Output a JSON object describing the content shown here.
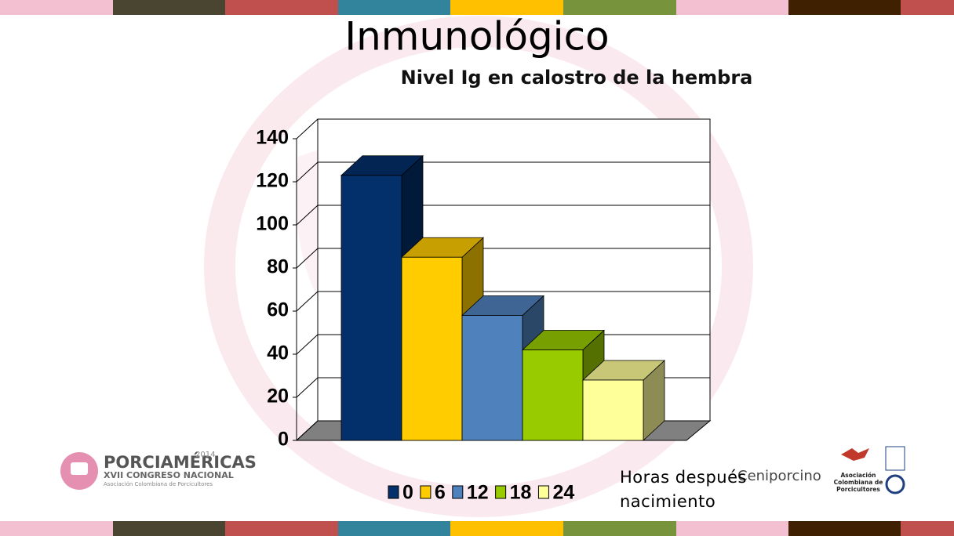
{
  "chart_data": {
    "type": "bar3d",
    "title": "Inmunológico",
    "subtitle": "Nivel Ig en calostro de la hembra",
    "annotation": "Horas después nacimiento",
    "series": [
      {
        "name": "0",
        "color": "#03306a",
        "values": [
          123
        ]
      },
      {
        "name": "6",
        "color": "#ffcc00",
        "values": [
          85
        ]
      },
      {
        "name": "12",
        "color": "#4f81bd",
        "values": [
          58
        ]
      },
      {
        "name": "18",
        "color": "#99cc00",
        "values": [
          42
        ]
      },
      {
        "name": "24",
        "color": "#ffff99",
        "values": [
          28
        ]
      }
    ],
    "ylim": [
      0,
      140
    ],
    "yticks": [
      0,
      20,
      40,
      60,
      80,
      100,
      120,
      140
    ],
    "grid": true,
    "legend": "bottom"
  },
  "logos": {
    "left_name": "PORCIAMÉRICAS",
    "left_year": "2014",
    "left_line": "XVII CONGRESO NACIONAL",
    "left_org": "Asociación Colombiana de Porcicultores",
    "mid_name": "Ceniporcino",
    "right_org": "Asociación Colombiana de Porcicultores"
  }
}
